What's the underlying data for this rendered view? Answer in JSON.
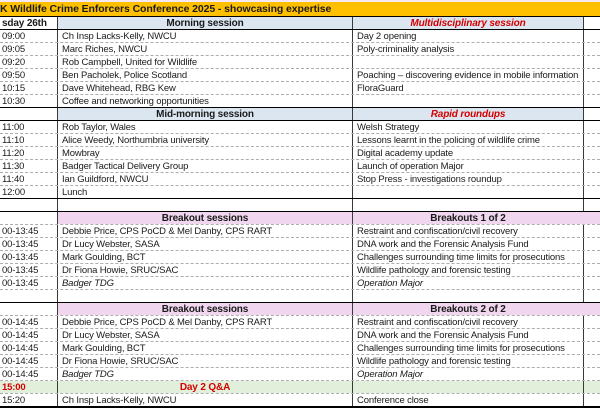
{
  "title": "K Wildlife Crime Enforcers Conference 2025 - showcasing expertise",
  "colors": {
    "orange": "#FFC000",
    "blue": "#DCE6F1",
    "pink": "#F0D7EF",
    "green": "#E2EFDA",
    "red": "#D40000",
    "ink": "#1A1A1A",
    "dash": "#ADADAD",
    "vline": "#3A3A3A",
    "strip": "#F6E8F3"
  },
  "rows": [
    {
      "kind": "hblue",
      "c1": "sday 26th",
      "c2": "Morning session",
      "c3": "Multidisciplinary session",
      "solid": true
    },
    {
      "kind": "data",
      "c1": "09:00",
      "c2": "Ch Insp Lacks-Kelly, NWCU",
      "c3": "Day 2 opening"
    },
    {
      "kind": "data",
      "c1": "09:05",
      "c2": "Marc Riches, NWCU",
      "c3": "Poly-criminality analysis"
    },
    {
      "kind": "data",
      "c1": "09:20",
      "c2": "Rob Campbell, United for Wildlife",
      "c3": ""
    },
    {
      "kind": "data",
      "c1": "09:50",
      "c2": "Ben Pacholek, Police Scotland",
      "c3": "Poaching – discovering evidence in mobile information"
    },
    {
      "kind": "data",
      "c1": "10:15",
      "c2": "Dave Whitehead, RBG Kew",
      "c3": "FloraGuard"
    },
    {
      "kind": "data",
      "c1": "10:30",
      "c2": "Coffee and networking opportunities",
      "c3": "",
      "solid": true
    },
    {
      "kind": "hblue",
      "c1": "",
      "c2": "Mid-morning session",
      "c3": "Rapid roundups",
      "solid": true
    },
    {
      "kind": "data",
      "c1": "11:00",
      "c2": "Rob Taylor, Wales",
      "c3": "Welsh Strategy"
    },
    {
      "kind": "data",
      "c1": "11:10",
      "c2": "Alice Weedy, Northumbria university",
      "c3": "Lessons learnt in the policing of wildlife crime"
    },
    {
      "kind": "data",
      "c1": "11:20",
      "c2": "Mowbray",
      "c3": "Digital academy update"
    },
    {
      "kind": "data",
      "c1": "11:30",
      "c2": "Badger Tactical Delivery Group",
      "c3": "Launch of operation Major"
    },
    {
      "kind": "data",
      "c1": "11:40",
      "c2": "Ian Guildford, NWCU",
      "c3": "Stop Press - investigations roundup"
    },
    {
      "kind": "data",
      "c1": "12:00",
      "c2": "Lunch",
      "c3": "",
      "solid": true
    },
    {
      "kind": "blank",
      "c1": "",
      "c2": "",
      "c3": "",
      "solid": true
    },
    {
      "kind": "hpink",
      "c1": "",
      "c2": "Breakout sessions",
      "c3": "Breakouts 1 of 2"
    },
    {
      "kind": "data",
      "c1": "00-13:45",
      "c2": "Debbie Price, CPS PoCD & Mel Danby, CPS RART",
      "c3": "Restraint and confiscation/civil recovery"
    },
    {
      "kind": "data",
      "c1": "00-13:45",
      "c2": "Dr Lucy Webster, SASA",
      "c3": "DNA work and the Forensic Analysis Fund"
    },
    {
      "kind": "data",
      "c1": "00-13:45",
      "c2": "Mark Goulding, BCT",
      "c3": "Challenges surrounding time limits for prosecutions"
    },
    {
      "kind": "data",
      "c1": "00-13:45",
      "c2": "Dr Fiona Howie, SRUC/SAC",
      "c3": "Wildlife pathology and forensic testing"
    },
    {
      "kind": "data",
      "c1": "00-13:45",
      "c2": "Badger TDG",
      "c3": "Operation Major",
      "italic": true
    },
    {
      "kind": "blank",
      "c1": "",
      "c2": "",
      "c3": "",
      "solid": true
    },
    {
      "kind": "hpink",
      "c1": "",
      "c2": "Breakout sessions",
      "c3": "Breakouts 2 of 2"
    },
    {
      "kind": "data",
      "c1": "00-14:45",
      "c2": "Debbie Price, CPS PoCD & Mel Danby, CPS RART",
      "c3": "Restraint and confiscation/civil recovery"
    },
    {
      "kind": "data",
      "c1": "00-14:45",
      "c2": "Dr Lucy Webster, SASA",
      "c3": "DNA work and the Forensic Analysis Fund"
    },
    {
      "kind": "data",
      "c1": "00-14:45",
      "c2": "Mark Goulding, BCT",
      "c3": "Challenges surrounding time limits for prosecutions"
    },
    {
      "kind": "data",
      "c1": "00-14:45",
      "c2": "Dr Fiona Howie, SRUC/SAC",
      "c3": "Wildlife pathology and forensic testing"
    },
    {
      "kind": "data",
      "c1": "00-14:45",
      "c2": "Badger TDG",
      "c3": "Operation Major",
      "italic": true
    },
    {
      "kind": "qa",
      "c1": "15:00",
      "c2": "Day 2 Q&A",
      "c3": ""
    },
    {
      "kind": "data",
      "c1": "15:20",
      "c2": "Ch Insp Lacks-Kelly, NWCU",
      "c3": "Conference close",
      "last": true
    }
  ]
}
